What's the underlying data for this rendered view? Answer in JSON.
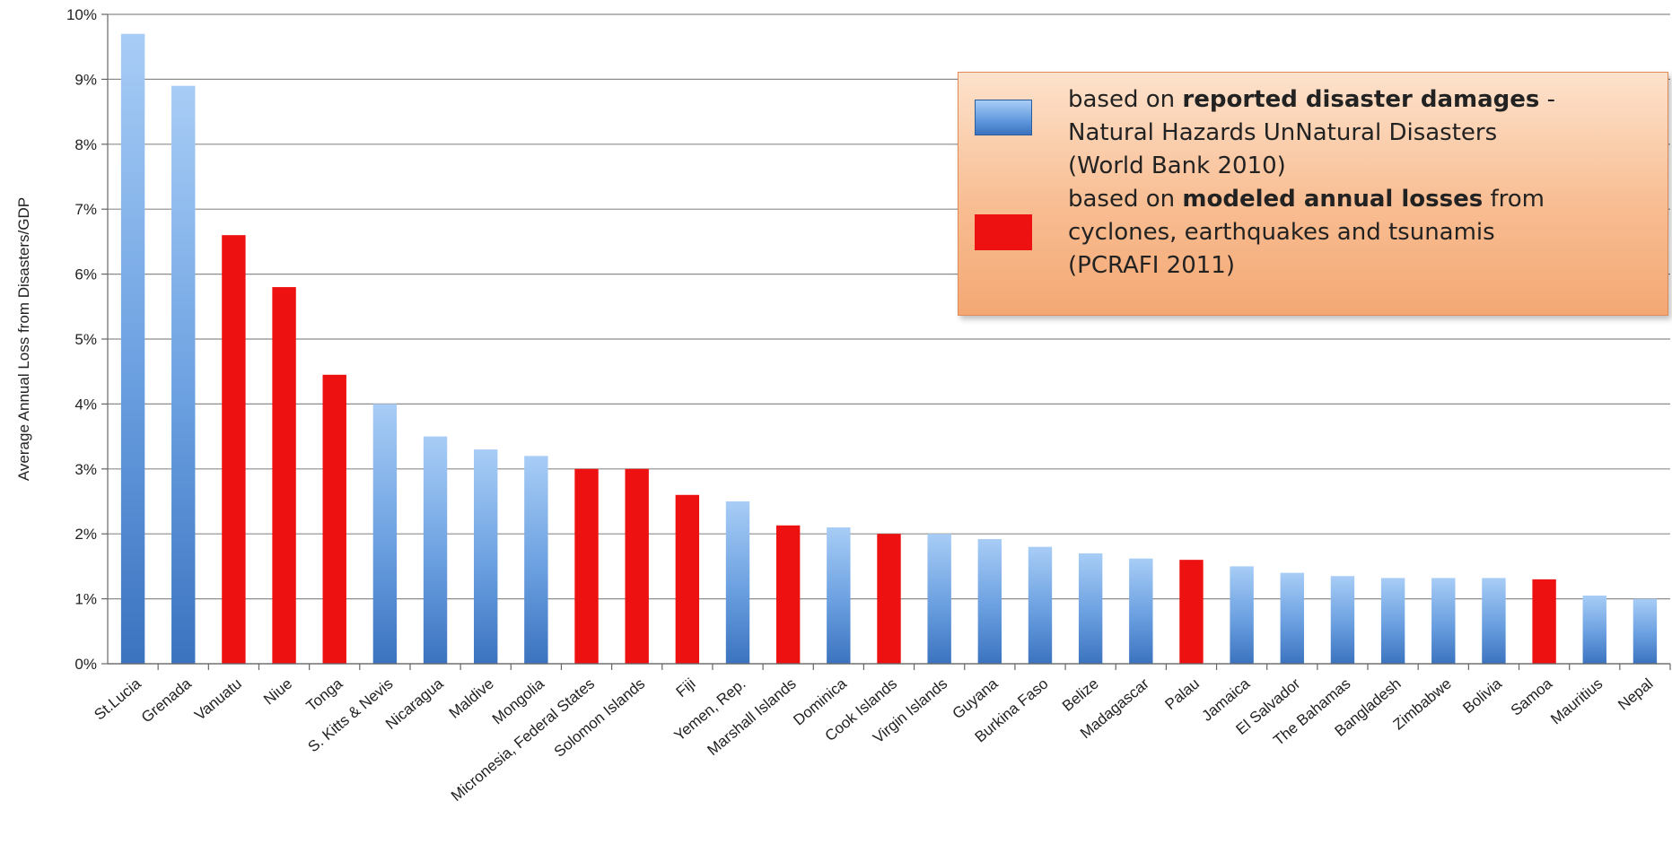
{
  "chart_data": {
    "type": "bar",
    "ylabel": "Average Annual Loss from Disasters/GDP",
    "ylim": [
      0,
      10
    ],
    "yticks": [
      "0%",
      "1%",
      "2%",
      "3%",
      "4%",
      "5%",
      "6%",
      "7%",
      "8%",
      "9%",
      "10%"
    ],
    "grid": true,
    "legend_position": "top-right",
    "categories": [
      "St.Lucia",
      "Grenada",
      "Vanuatu",
      "Niue",
      "Tonga",
      "S. Kitts & Nevis",
      "Nicaragua",
      "Maldive",
      "Mongolia",
      "Micronesia, Federal States",
      "Solomon Islands",
      "Fiji",
      "Yemen, Rep.",
      "Marshall Islands",
      "Dominica",
      "Cook Islands",
      "Virgin Islands",
      "Guyana",
      "Burkina Faso",
      "Belize",
      "Madagascar",
      "Palau",
      "Jamaica",
      "El Salvador",
      "The Bahamas",
      "Bangladesh",
      "Zimbabwe",
      "Bolivia",
      "Samoa",
      "Mauritius",
      "Nepal"
    ],
    "values": [
      9.7,
      8.9,
      6.6,
      5.8,
      4.45,
      4.0,
      3.5,
      3.3,
      3.2,
      3.0,
      3.0,
      2.6,
      2.5,
      2.13,
      2.1,
      2.0,
      2.0,
      1.92,
      1.8,
      1.7,
      1.62,
      1.6,
      1.5,
      1.4,
      1.35,
      1.32,
      1.32,
      1.32,
      1.3,
      1.05,
      1.0
    ],
    "source": [
      "reported",
      "reported",
      "modeled",
      "modeled",
      "modeled",
      "reported",
      "reported",
      "reported",
      "reported",
      "modeled",
      "modeled",
      "modeled",
      "reported",
      "modeled",
      "reported",
      "modeled",
      "reported",
      "reported",
      "reported",
      "reported",
      "reported",
      "modeled",
      "reported",
      "reported",
      "reported",
      "reported",
      "reported",
      "reported",
      "modeled",
      "reported",
      "reported"
    ],
    "series": [
      {
        "key": "reported",
        "color": "#4a86cf"
      },
      {
        "key": "modeled",
        "color": "#ee1111"
      }
    ]
  },
  "legend": {
    "reported_lines": [
      {
        "pre": "based on ",
        "bold": "reported disaster damages",
        "post": "  -"
      },
      {
        "pre": "Natural Hazards UnNatural Disasters",
        "bold": "",
        "post": ""
      },
      {
        "pre": "(World Bank 2010)",
        "bold": "",
        "post": ""
      }
    ],
    "modeled_lines": [
      {
        "pre": "based on ",
        "bold": "modeled annual losses",
        "post": " from"
      },
      {
        "pre": "cyclones, earthquakes and tsunamis",
        "bold": "",
        "post": ""
      },
      {
        "pre": "(PCRAFI 2011)",
        "bold": "",
        "post": ""
      }
    ]
  }
}
